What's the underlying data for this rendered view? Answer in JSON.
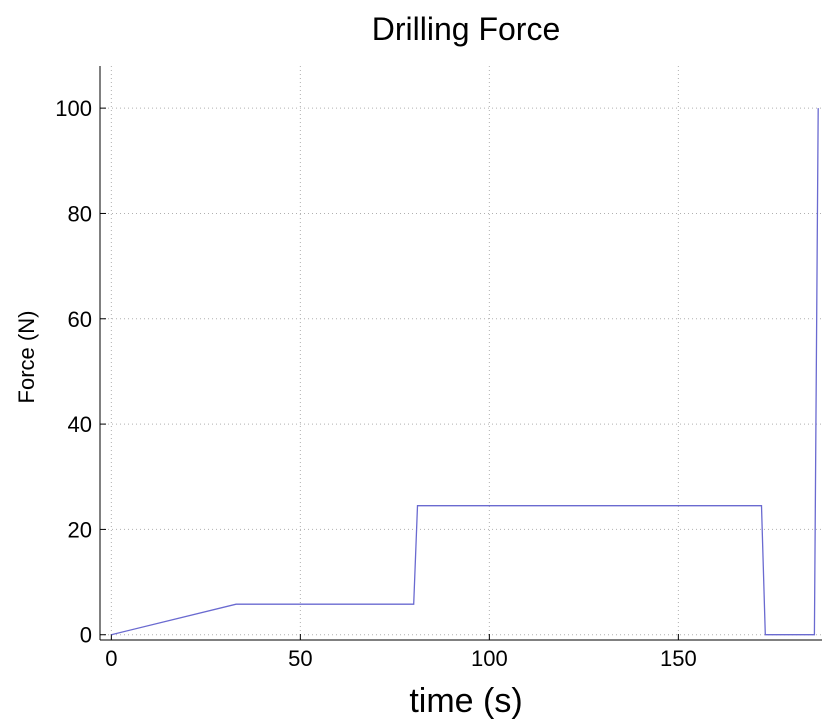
{
  "chart_data": {
    "type": "line",
    "title": "Drilling Force",
    "xlabel": "time (s)",
    "ylabel": "Force (N)",
    "xlim": [
      -3,
      188
    ],
    "ylim": [
      -1,
      108
    ],
    "xticks": [
      0,
      50,
      100,
      150
    ],
    "yticks": [
      0,
      20,
      40,
      60,
      80,
      100
    ],
    "grid": true,
    "series": [
      {
        "color": "#6a6ad0",
        "x": [
          0,
          33,
          80,
          81,
          172,
          173,
          186,
          187
        ],
        "y": [
          0,
          5.8,
          5.8,
          24.5,
          24.5,
          0,
          0,
          100
        ]
      }
    ]
  }
}
